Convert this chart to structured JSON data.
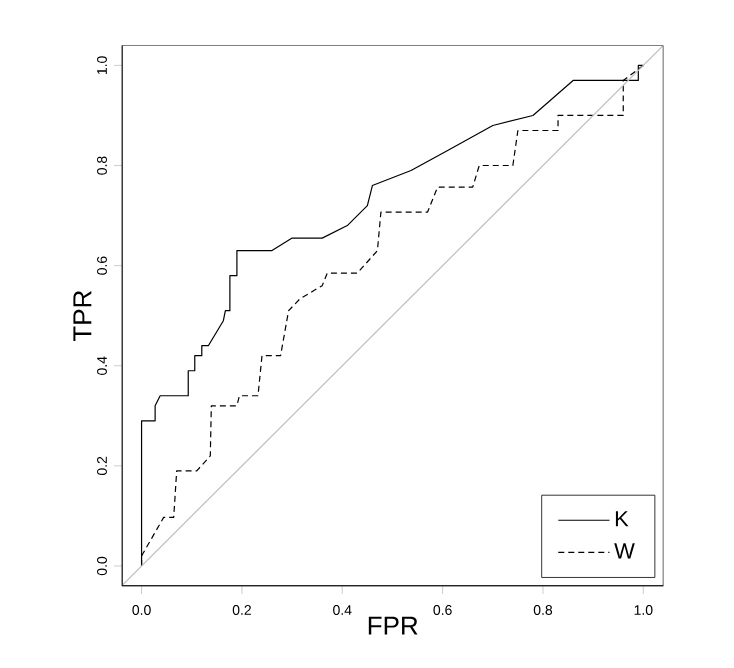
{
  "chart_data": {
    "type": "line",
    "xlabel": "FPR",
    "ylabel": "TPR",
    "xlim": [
      -0.039,
      1.04
    ],
    "ylim": [
      -0.04,
      1.04
    ],
    "xticks": [
      {
        "value": 0,
        "label": "0.0"
      },
      {
        "value": 0.2,
        "label": "0.2"
      },
      {
        "value": 0.4,
        "label": "0.4"
      },
      {
        "value": 0.6,
        "label": "0.6"
      },
      {
        "value": 0.8,
        "label": "0.8"
      },
      {
        "value": 1,
        "label": "1.0"
      }
    ],
    "yticks": [
      {
        "value": 0,
        "label": "0.0"
      },
      {
        "value": 0.2,
        "label": "0.2"
      },
      {
        "value": 0.4,
        "label": "0.4"
      },
      {
        "value": 0.6,
        "label": "0.6"
      },
      {
        "value": 0.8,
        "label": "0.8"
      },
      {
        "value": 1,
        "label": "1.0"
      }
    ],
    "grid": false,
    "legend": "bottom right",
    "marker": "none",
    "series": [
      {
        "name": "K",
        "color": "#000000",
        "line_style": "solid",
        "x": [
          0,
          0,
          0.027,
          0.027,
          0.037,
          0.093,
          0.093,
          0.106,
          0.106,
          0.12,
          0.12,
          0.133,
          0.163,
          0.167,
          0.176,
          0.176,
          0.19,
          0.19,
          0.26,
          0.3,
          0.36,
          0.41,
          0.45,
          0.46,
          0.537,
          0.61,
          0.7,
          0.78,
          0.86,
          0.99,
          0.99,
          1
        ],
        "values": [
          0,
          0.29,
          0.29,
          0.32,
          0.34,
          0.34,
          0.39,
          0.39,
          0.42,
          0.42,
          0.44,
          0.44,
          0.49,
          0.51,
          0.51,
          0.58,
          0.58,
          0.63,
          0.63,
          0.655,
          0.655,
          0.68,
          0.72,
          0.76,
          0.79,
          0.83,
          0.88,
          0.9,
          0.97,
          0.97,
          1,
          1
        ]
      },
      {
        "name": "W",
        "color": "#000000",
        "line_style": "dashed",
        "x": [
          0,
          0,
          0.044,
          0.064,
          0.07,
          0.11,
          0.137,
          0.139,
          0.19,
          0.195,
          0.232,
          0.24,
          0.277,
          0.293,
          0.316,
          0.36,
          0.37,
          0.43,
          0.47,
          0.477,
          0.57,
          0.59,
          0.66,
          0.673,
          0.74,
          0.75,
          0.83,
          0.83,
          0.96,
          0.96,
          1
        ],
        "values": [
          0,
          0.02,
          0.097,
          0.097,
          0.19,
          0.19,
          0.22,
          0.32,
          0.32,
          0.34,
          0.34,
          0.42,
          0.42,
          0.51,
          0.534,
          0.56,
          0.585,
          0.585,
          0.63,
          0.707,
          0.707,
          0.757,
          0.757,
          0.8,
          0.8,
          0.87,
          0.87,
          0.9,
          0.9,
          0.97,
          1
        ]
      },
      {
        "color": "#bebebe",
        "line_style": "solid",
        "x": [
          -0.039,
          1.04
        ],
        "values": [
          -0.039,
          1.04
        ]
      }
    ]
  }
}
